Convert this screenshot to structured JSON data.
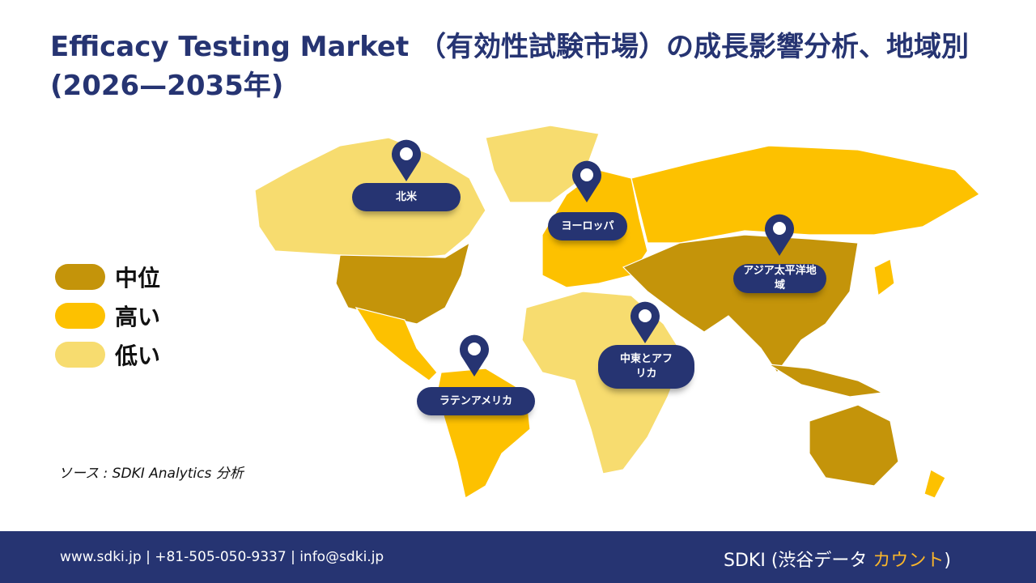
{
  "header": {
    "title": "Efficacy Testing Market （有効性試験市場）の成長影響分析、地域別(2026—2035年)"
  },
  "legend": [
    {
      "label": "中位",
      "color": "#C4940A"
    },
    {
      "label": "高い",
      "color": "#FDC100"
    },
    {
      "label": "低い",
      "color": "#F7DC6F"
    }
  ],
  "regions": [
    {
      "label": "北米",
      "level": "mixed"
    },
    {
      "label": "ヨーロッパ",
      "level": "high"
    },
    {
      "label": "アジア太平洋地域",
      "level": "medium"
    },
    {
      "label": "中東とアフリカ",
      "level": "low"
    },
    {
      "label": "ラテンアメリカ",
      "level": "high"
    }
  ],
  "source": "ソース : SDKI Analytics 分析",
  "footer": {
    "contact": "www.sdki.jp | +81-505-050-9337 | info@sdki.jp",
    "brand_prefix": "SDKI (渋谷データ ",
    "brand_accent": "カウント",
    "brand_suffix": ")"
  },
  "colors": {
    "navy": "#263472",
    "accent": "#F9B52B"
  }
}
